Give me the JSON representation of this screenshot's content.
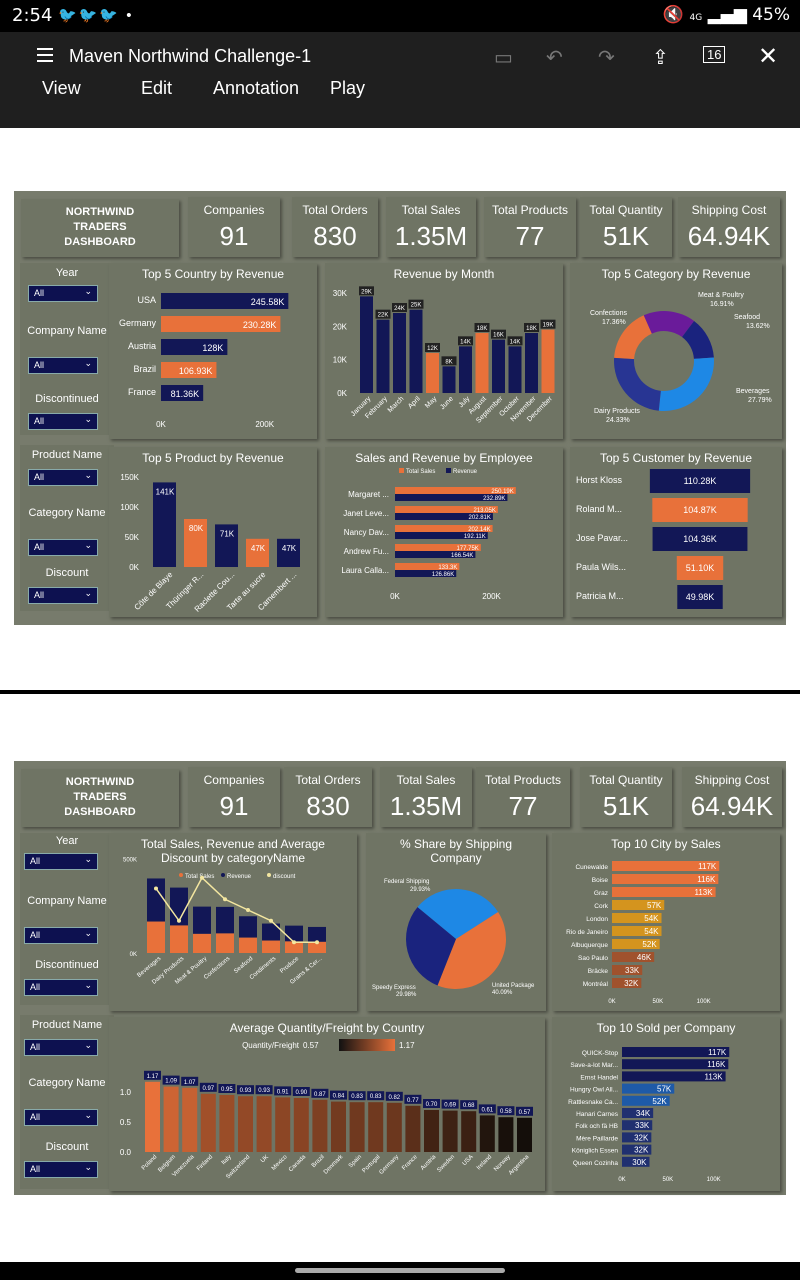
{
  "status": {
    "time": "2:54",
    "signal": "4G",
    "battery": "45%"
  },
  "app": {
    "title": "Maven Northwind Challenge-1",
    "menus": [
      "View",
      "Edit",
      "Annotation",
      "Play"
    ]
  },
  "colors": {
    "navy": "#121756",
    "orange": "#e8713a",
    "panel": "#6f7464",
    "bg": "#777b6c"
  },
  "brand": {
    "line1": "NORTHWIND",
    "line2": "TRADERS",
    "line3": "DASHBOARD"
  },
  "kpis": [
    {
      "label": "Companies",
      "value": "91"
    },
    {
      "label": "Total Orders",
      "value": "830"
    },
    {
      "label": "Total Sales",
      "value": "1.35M"
    },
    {
      "label": "Total Products",
      "value": "77"
    },
    {
      "label": "Total Quantity",
      "value": "51K"
    },
    {
      "label": "Shipping Cost",
      "value": "64.94K"
    }
  ],
  "slicers": [
    {
      "label": "Year",
      "value": "All"
    },
    {
      "label": "Company Name",
      "value": "All"
    },
    {
      "label": "Discontinued",
      "value": "All"
    },
    {
      "label": "Product Name",
      "value": "All"
    },
    {
      "label": "Category Name",
      "value": "All"
    },
    {
      "label": "Discount",
      "value": "All"
    }
  ],
  "chart_data": [
    {
      "title": "Top 5 Country by Revenue",
      "type": "bar",
      "categories": [
        "USA",
        "Germany",
        "Austria",
        "Brazil",
        "France"
      ],
      "values": [
        245.58,
        230.28,
        128,
        106.93,
        81.36
      ],
      "labels": [
        "245.58K",
        "230.28K",
        "128K",
        "106.93K",
        "81.36K"
      ],
      "ticks": [
        "0K",
        "200K"
      ]
    },
    {
      "title": "Revenue by Month",
      "type": "bar",
      "categories": [
        "January",
        "February",
        "March",
        "April",
        "May",
        "June",
        "July",
        "August",
        "September",
        "October",
        "November",
        "December"
      ],
      "values": [
        29,
        22,
        24,
        25,
        12,
        8,
        14,
        18,
        16,
        14,
        18,
        19
      ],
      "labels": [
        "29K",
        "22K",
        "24K",
        "25K",
        "12K",
        "8K",
        "14K",
        "18K",
        "16K",
        "14K",
        "18K",
        "19K"
      ],
      "ticks": [
        "0K",
        "10K",
        "20K",
        "30K"
      ]
    },
    {
      "title": "Top 5 Category by Revenue",
      "type": "pie",
      "categories": [
        "Confections",
        "Meat & Poultry",
        "Seafood",
        "Beverages",
        "Dairy Products"
      ],
      "values": [
        17.36,
        16.91,
        13.62,
        27.79,
        24.33
      ],
      "labels": [
        "17.36%",
        "16.91%",
        "13.62%",
        "27.79%",
        "24.33%"
      ]
    },
    {
      "title": "Top 5 Product by Revenue",
      "type": "bar",
      "categories": [
        "Côte de Blaye",
        "Thüringer R...",
        "Raclette Cou...",
        "Tarte au sucre",
        "Camembert ..."
      ],
      "values": [
        141,
        80,
        71,
        47,
        47
      ],
      "labels": [
        "141K",
        "80K",
        "71K",
        "47K",
        "47K"
      ],
      "ticks": [
        "0K",
        "50K",
        "100K",
        "150K"
      ]
    },
    {
      "title": "Sales and Revenue by Employee",
      "type": "bar",
      "legend": [
        "Total Sales",
        "Revenue"
      ],
      "categories": [
        "Margaret ...",
        "Janet Leve...",
        "Nancy Dav...",
        "Andrew Fu...",
        "Laura Calla..."
      ],
      "series": [
        {
          "name": "Total Sales",
          "values": [
            250.19,
            213.05,
            202.14,
            177.75,
            133.3
          ]
        },
        {
          "name": "Revenue",
          "values": [
            232.89,
            202.81,
            192.11,
            166.54,
            126.86
          ]
        }
      ],
      "labels_sales": [
        "250.19K",
        "213.05K",
        "202.14K",
        "177.75K",
        "133.3K"
      ],
      "labels_rev": [
        "232.89K",
        "202.81K",
        "192.11K",
        "166.54K",
        "126.86K"
      ],
      "ticks": [
        "0K",
        "200K"
      ]
    },
    {
      "title": "Top 5 Customer by Revenue",
      "type": "bar",
      "categories": [
        "Horst Kloss",
        "Roland M...",
        "Jose Pavar...",
        "Paula Wils...",
        "Patricia M..."
      ],
      "values": [
        110.28,
        104.87,
        104.36,
        51.1,
        49.98
      ],
      "labels": [
        "110.28K",
        "104.87K",
        "104.36K",
        "51.10K",
        "49.98K"
      ]
    },
    {
      "title": "Total Sales, Revenue and Average Discount by categoryName",
      "type": "bar",
      "legend": [
        "Total Sales",
        "Revenue",
        "discount"
      ],
      "categories": [
        "Beverages",
        "Dairy Products",
        "Meat & Poultry",
        "Confections",
        "Seafood",
        "Condiments",
        "Produce",
        "Grains & Cer..."
      ],
      "series": [
        {
          "name": "Total Sales",
          "values": [
            286,
            251,
            178,
            177,
            141,
            113,
            105,
            100
          ]
        },
        {
          "name": "Revenue",
          "values": [
            268,
            235,
            163,
            167,
            131,
            106,
            99,
            95
          ]
        },
        {
          "name": "discount",
          "values": [
            0.06,
            0.03,
            0.07,
            0.05,
            0.04,
            0.03,
            0.01,
            0.01
          ]
        }
      ],
      "ticks": [
        "0K",
        "500K"
      ]
    },
    {
      "title": "% Share by Shipping Company",
      "type": "pie",
      "categories": [
        "Federal Shipping",
        "United Package",
        "Speedy Express"
      ],
      "values": [
        29.93,
        40.09,
        29.98
      ],
      "labels": [
        "29.93%",
        "40.09%",
        "29.98%"
      ]
    },
    {
      "title": "Top 10 City by Sales",
      "type": "bar",
      "categories": [
        "Cunewalde",
        "Boise",
        "Graz",
        "Cork",
        "London",
        "Rio de Janeiro",
        "Albuquerque",
        "Sao Paulo",
        "Bräcke",
        "Montréal"
      ],
      "values": [
        117,
        116,
        113,
        57,
        54,
        54,
        52,
        46,
        33,
        32
      ],
      "labels": [
        "117K",
        "116K",
        "113K",
        "57K",
        "54K",
        "54K",
        "52K",
        "46K",
        "33K",
        "32K"
      ],
      "ticks": [
        "0K",
        "50K",
        "100K"
      ]
    },
    {
      "title": "Average Quantity/Freight by Country",
      "type": "bar",
      "legend_label": "Quantity/Freight",
      "legend_min": "0.57",
      "legend_max": "1.17",
      "categories": [
        "Poland",
        "Belgium",
        "Venezuela",
        "Finland",
        "Italy",
        "Switzerland",
        "UK",
        "Mexico",
        "Canada",
        "Brazil",
        "Denmark",
        "Spain",
        "Portugal",
        "Germany",
        "France",
        "Austria",
        "Sweden",
        "USA",
        "Ireland",
        "Norway",
        "Argentina"
      ],
      "values": [
        1.17,
        1.09,
        1.07,
        0.97,
        0.95,
        0.93,
        0.93,
        0.91,
        0.9,
        0.87,
        0.84,
        0.83,
        0.83,
        0.82,
        0.77,
        0.7,
        0.69,
        0.68,
        0.61,
        0.58,
        0.57
      ],
      "ticks": [
        "0.0",
        "0.5",
        "1.0"
      ]
    },
    {
      "title": "Top 10 Sold per Company",
      "type": "bar",
      "categories": [
        "QUICK-Stop",
        "Save-a-lot Mar...",
        "Ernst Handel",
        "Hungry Owl All...",
        "Rattlesnake Ca...",
        "Hanari Carnes",
        "Folk och fä HB",
        "Mère Paillarde",
        "Königlich Essen",
        "Queen Cozinha"
      ],
      "values": [
        117,
        116,
        113,
        57,
        52,
        34,
        33,
        32,
        32,
        30
      ],
      "labels": [
        "117K",
        "116K",
        "113K",
        "57K",
        "52K",
        "34K",
        "33K",
        "32K",
        "32K",
        "30K"
      ],
      "ticks": [
        "0K",
        "50K",
        "100K"
      ]
    }
  ]
}
